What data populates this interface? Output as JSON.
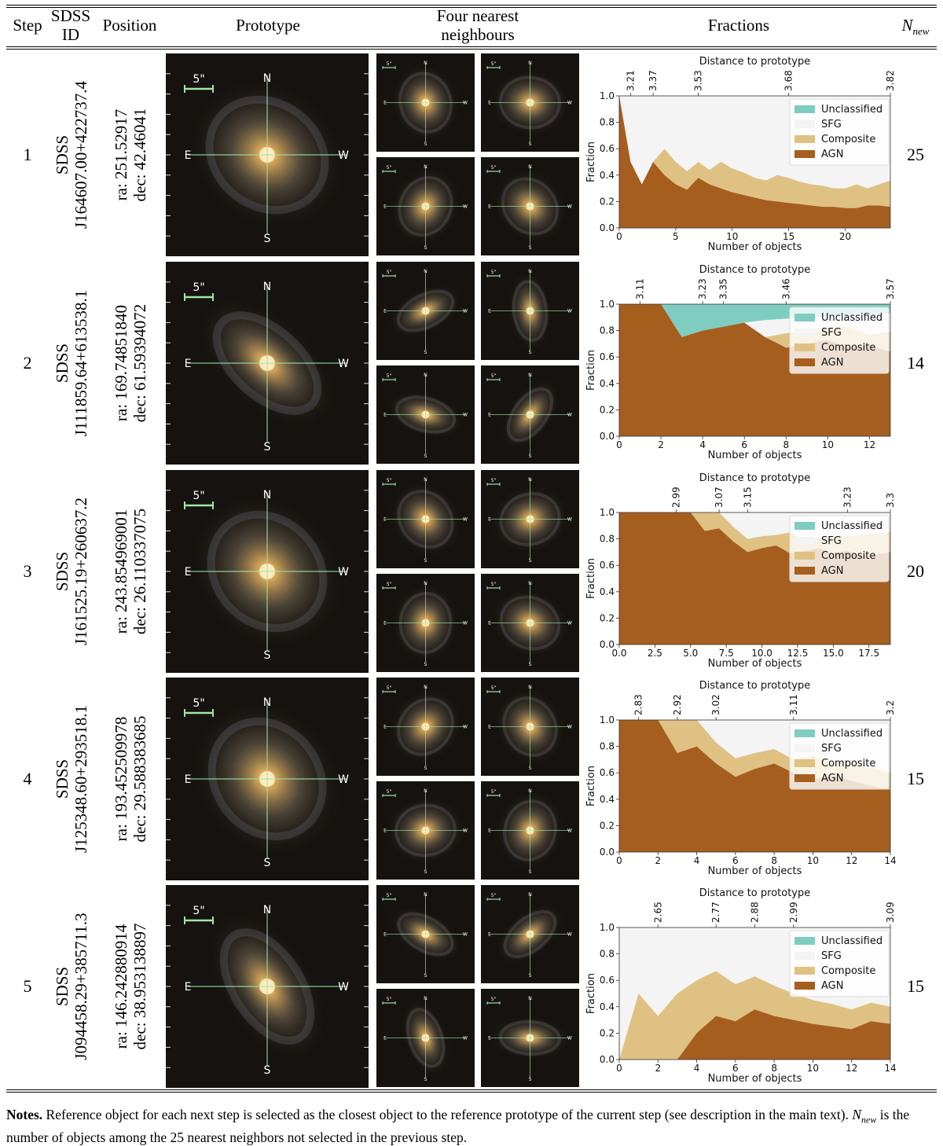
{
  "table": {
    "headers": {
      "step": "Step",
      "sdss_id": "SDSS ID",
      "position": "Position",
      "prototype": "Prototype",
      "neighbours": "Four nearest neighbours",
      "fractions": "Fractions",
      "nnew": "N_new"
    },
    "rows": [
      {
        "step": "1",
        "sdss_line1": "SDSS",
        "sdss_line2": "J164607.00+422737.4",
        "ra": "ra: 251.52917",
        "dec": "dec: 42.46041",
        "nnew": "25"
      },
      {
        "step": "2",
        "sdss_line1": "SDSS",
        "sdss_line2": "J111859.64+613538.1",
        "ra": "ra: 169.74851840",
        "dec": "dec: 61.59394072",
        "nnew": "14"
      },
      {
        "step": "3",
        "sdss_line1": "SDSS",
        "sdss_line2": "J161525.19+260637.2",
        "ra": "ra: 243.854969001",
        "dec": "dec: 26.110337075",
        "nnew": "20"
      },
      {
        "step": "4",
        "sdss_line1": "SDSS",
        "sdss_line2": "J125348.60+293518.1",
        "ra": "ra: 193.452509978",
        "dec": "dec: 29.588383685",
        "nnew": "15"
      },
      {
        "step": "5",
        "sdss_line1": "SDSS",
        "sdss_line2": "J094458.29+385711.3",
        "ra": "ra: 146.242880914",
        "dec": "dec: 38.953138897",
        "nnew": "15"
      }
    ],
    "image_labels": {
      "scale": "5\"",
      "north": "N",
      "south": "S",
      "east": "E",
      "west": "W"
    }
  },
  "chart_data": [
    {
      "type": "area",
      "title": "Distance to prototype",
      "xlabel": "Number of objects",
      "ylabel": "Fraction",
      "xlim": [
        0,
        24
      ],
      "ylim": [
        0,
        1
      ],
      "xticks": [
        0,
        5,
        10,
        15,
        20
      ],
      "xtick_labels": [
        "0",
        "5",
        "10",
        "15",
        "20"
      ],
      "yticks": [
        0,
        0.2,
        0.4,
        0.6,
        0.8,
        1.0
      ],
      "ytick_labels": [
        "0.0",
        "0.2",
        "0.4",
        "0.6",
        "0.8",
        "1.0"
      ],
      "top_ticks": [
        1,
        3,
        7,
        15,
        24
      ],
      "top_labels": [
        "3.21",
        "3.37",
        "3.53",
        "3.68",
        "3.82"
      ],
      "legend": [
        "Unclassified",
        "SFG",
        "Composite",
        "AGN"
      ],
      "x": [
        0,
        1,
        2,
        3,
        4,
        5,
        6,
        7,
        8,
        9,
        10,
        11,
        12,
        13,
        14,
        15,
        16,
        17,
        18,
        19,
        20,
        21,
        22,
        23,
        24
      ],
      "agn": [
        1.0,
        0.5,
        0.33,
        0.5,
        0.4,
        0.33,
        0.29,
        0.38,
        0.33,
        0.3,
        0.27,
        0.25,
        0.23,
        0.21,
        0.2,
        0.19,
        0.18,
        0.17,
        0.16,
        0.16,
        0.15,
        0.15,
        0.17,
        0.17,
        0.16
      ],
      "agn_comp": [
        1.0,
        0.5,
        0.33,
        0.5,
        0.6,
        0.5,
        0.43,
        0.5,
        0.44,
        0.5,
        0.45,
        0.42,
        0.38,
        0.36,
        0.4,
        0.38,
        0.35,
        0.33,
        0.32,
        0.3,
        0.3,
        0.33,
        0.3,
        0.33,
        0.36
      ],
      "sfg_top": [
        1.0,
        1.0,
        1.0,
        1.0,
        1.0,
        1.0,
        1.0,
        1.0,
        1.0,
        1.0,
        1.0,
        1.0,
        1.0,
        1.0,
        1.0,
        1.0,
        1.0,
        1.0,
        1.0,
        1.0,
        1.0,
        1.0,
        1.0,
        1.0,
        1.0
      ],
      "sfg_top_real": [
        1.0,
        1.0,
        1.0,
        1.0,
        1.0,
        1.0,
        1.0,
        1.0,
        1.0,
        1.0,
        1.0,
        1.0,
        1.0,
        1.0,
        1.0,
        0.95,
        0.95,
        0.95,
        0.95,
        0.95,
        0.95,
        0.95,
        0.95,
        0.95,
        0.95
      ]
    },
    {
      "type": "area",
      "title": "Distance to prototype",
      "xlabel": "Number of objects",
      "ylabel": "Fraction",
      "xlim": [
        0,
        13
      ],
      "ylim": [
        0,
        1
      ],
      "xticks": [
        0,
        2,
        4,
        6,
        8,
        10,
        12
      ],
      "xtick_labels": [
        "0",
        "2",
        "4",
        "6",
        "8",
        "10",
        "12"
      ],
      "yticks": [
        0,
        0.2,
        0.4,
        0.6,
        0.8,
        1.0
      ],
      "ytick_labels": [
        "0.0",
        "0.2",
        "0.4",
        "0.6",
        "0.8",
        "1.0"
      ],
      "top_ticks": [
        1,
        4,
        5,
        8,
        13
      ],
      "top_labels": [
        "3.11",
        "3.23",
        "3.35",
        "3.46",
        "3.57"
      ],
      "legend": [
        "Unclassified",
        "SFG",
        "Composite",
        "AGN"
      ],
      "x": [
        0,
        1,
        2,
        3,
        4,
        5,
        6,
        7,
        8,
        9,
        10,
        11,
        12,
        13
      ],
      "agn": [
        1.0,
        1.0,
        1.0,
        0.75,
        0.8,
        0.83,
        0.86,
        0.75,
        0.67,
        0.7,
        0.73,
        0.67,
        0.69,
        0.64
      ],
      "agn_comp": [
        1.0,
        1.0,
        1.0,
        0.75,
        0.8,
        0.83,
        0.86,
        0.75,
        0.78,
        0.8,
        0.82,
        0.83,
        0.77,
        0.79
      ],
      "sfg_top": [
        1.0,
        1.0,
        1.0,
        0.75,
        0.8,
        0.83,
        0.86,
        0.88,
        0.89,
        0.9,
        0.91,
        0.92,
        0.92,
        0.93
      ],
      "sfg_top_real": [
        1.0,
        1.0,
        1.0,
        1.0,
        1.0,
        1.0,
        1.0,
        1.0,
        1.0,
        1.0,
        1.0,
        1.0,
        1.0,
        1.0
      ]
    },
    {
      "type": "area",
      "title": "Distance to prototype",
      "xlabel": "Number of objects",
      "ylabel": "Fraction",
      "xlim": [
        0,
        19
      ],
      "ylim": [
        0,
        1
      ],
      "xticks": [
        0,
        2.5,
        5,
        7.5,
        10,
        12.5,
        15,
        17.5
      ],
      "xtick_labels": [
        "0.0",
        "2.5",
        "5.0",
        "7.5",
        "10.0",
        "12.5",
        "15.0",
        "17.5"
      ],
      "yticks": [
        0,
        0.2,
        0.4,
        0.6,
        0.8,
        1.0
      ],
      "ytick_labels": [
        "0.0",
        "0.2",
        "0.4",
        "0.6",
        "0.8",
        "1.0"
      ],
      "top_ticks": [
        4,
        7,
        9,
        16,
        19
      ],
      "top_labels": [
        "2.99",
        "3.07",
        "3.15",
        "3.23",
        "3.3"
      ],
      "legend": [
        "Unclassified",
        "SFG",
        "Composite",
        "AGN"
      ],
      "x": [
        0,
        1,
        2,
        3,
        4,
        5,
        6,
        7,
        8,
        9,
        10,
        11,
        12,
        13,
        14,
        15,
        16,
        17,
        18,
        19
      ],
      "agn": [
        1.0,
        1.0,
        1.0,
        1.0,
        1.0,
        1.0,
        0.86,
        0.88,
        0.78,
        0.7,
        0.73,
        0.75,
        0.69,
        0.71,
        0.73,
        0.69,
        0.71,
        0.67,
        0.68,
        0.7
      ],
      "agn_comp": [
        1.0,
        1.0,
        1.0,
        1.0,
        1.0,
        1.0,
        1.0,
        1.0,
        0.89,
        0.8,
        0.82,
        0.83,
        0.85,
        0.79,
        0.8,
        0.81,
        0.82,
        0.83,
        0.84,
        0.85
      ],
      "sfg_top": [
        1.0,
        1.0,
        1.0,
        1.0,
        1.0,
        1.0,
        1.0,
        1.0,
        1.0,
        1.0,
        1.0,
        1.0,
        1.0,
        1.0,
        1.0,
        1.0,
        1.0,
        1.0,
        1.0,
        1.0
      ],
      "sfg_top_real": [
        1.0,
        1.0,
        1.0,
        1.0,
        1.0,
        1.0,
        1.0,
        1.0,
        1.0,
        1.0,
        1.0,
        1.0,
        1.0,
        1.0,
        1.0,
        1.0,
        1.0,
        1.0,
        1.0,
        1.0
      ]
    },
    {
      "type": "area",
      "title": "Distance to prototype",
      "xlabel": "Number of objects",
      "ylabel": "Fraction",
      "xlim": [
        0,
        14
      ],
      "ylim": [
        0,
        1
      ],
      "xticks": [
        0,
        2,
        4,
        6,
        8,
        10,
        12,
        14
      ],
      "xtick_labels": [
        "0",
        "2",
        "4",
        "6",
        "8",
        "10",
        "12",
        "14"
      ],
      "yticks": [
        0,
        0.2,
        0.4,
        0.6,
        0.8,
        1.0
      ],
      "ytick_labels": [
        "0.0",
        "0.2",
        "0.4",
        "0.6",
        "0.8",
        "1.0"
      ],
      "top_ticks": [
        1,
        3,
        5,
        9,
        14
      ],
      "top_labels": [
        "2.83",
        "2.92",
        "3.02",
        "3.11",
        "3.2"
      ],
      "legend": [
        "Unclassified",
        "SFG",
        "Composite",
        "AGN"
      ],
      "x": [
        0,
        1,
        2,
        3,
        4,
        5,
        6,
        7,
        8,
        9,
        10,
        11,
        12,
        13,
        14
      ],
      "agn": [
        1.0,
        1.0,
        1.0,
        0.75,
        0.8,
        0.67,
        0.57,
        0.63,
        0.67,
        0.6,
        0.55,
        0.58,
        0.54,
        0.5,
        0.47
      ],
      "agn_comp": [
        1.0,
        1.0,
        1.0,
        1.0,
        1.0,
        0.83,
        0.71,
        0.75,
        0.78,
        0.7,
        0.73,
        0.67,
        0.69,
        0.64,
        0.6
      ],
      "sfg_top": [
        1.0,
        1.0,
        1.0,
        1.0,
        1.0,
        1.0,
        1.0,
        1.0,
        1.0,
        1.0,
        1.0,
        1.0,
        1.0,
        1.0,
        1.0
      ],
      "sfg_top_real": [
        1.0,
        1.0,
        1.0,
        1.0,
        1.0,
        1.0,
        1.0,
        1.0,
        1.0,
        1.0,
        1.0,
        1.0,
        1.0,
        1.0,
        1.0
      ]
    },
    {
      "type": "area",
      "title": "Distance to prototype",
      "xlabel": "Number of objects",
      "ylabel": "Fraction",
      "xlim": [
        0,
        14
      ],
      "ylim": [
        0,
        1
      ],
      "xticks": [
        0,
        2,
        4,
        6,
        8,
        10,
        12,
        14
      ],
      "xtick_labels": [
        "0",
        "2",
        "4",
        "6",
        "8",
        "10",
        "12",
        "14"
      ],
      "yticks": [
        0,
        0.2,
        0.4,
        0.6,
        0.8,
        1.0
      ],
      "ytick_labels": [
        "0.0",
        "0.2",
        "0.4",
        "0.6",
        "0.8",
        "1.0"
      ],
      "top_ticks": [
        2,
        5,
        7,
        9,
        14
      ],
      "top_labels": [
        "2.65",
        "2.77",
        "2.88",
        "2.99",
        "3.09"
      ],
      "legend": [
        "Unclassified",
        "SFG",
        "Composite",
        "AGN"
      ],
      "x": [
        0,
        1,
        2,
        3,
        4,
        5,
        6,
        7,
        8,
        9,
        10,
        11,
        12,
        13,
        14
      ],
      "agn": [
        0,
        0,
        0,
        0,
        0.2,
        0.33,
        0.29,
        0.38,
        0.33,
        0.3,
        0.27,
        0.25,
        0.23,
        0.29,
        0.27
      ],
      "agn_comp": [
        0,
        0.5,
        0.33,
        0.5,
        0.6,
        0.67,
        0.57,
        0.63,
        0.56,
        0.5,
        0.45,
        0.42,
        0.38,
        0.43,
        0.4
      ],
      "sfg_top": [
        1.0,
        1.0,
        1.0,
        1.0,
        1.0,
        1.0,
        1.0,
        1.0,
        1.0,
        1.0,
        1.0,
        1.0,
        1.0,
        1.0,
        1.0
      ],
      "sfg_top_real": [
        1.0,
        1.0,
        1.0,
        1.0,
        1.0,
        1.0,
        1.0,
        1.0,
        1.0,
        1.0,
        1.0,
        1.0,
        1.0,
        1.0,
        1.0
      ]
    }
  ],
  "colors": {
    "unclassified": "#7ecdc0",
    "sfg": "#f4f4f4",
    "composite": "#dfc283",
    "agn": "#a65e1e"
  },
  "notes": {
    "label": "Notes.",
    "text_before": " Reference object for each next step is selected as the closest object to the reference prototype of the current step (see description in the main text). ",
    "nnew_symbol": "N",
    "nnew_sub": "new",
    "text_after": " is the number of objects among the 25 nearest neighbors not selected in the previous step."
  }
}
